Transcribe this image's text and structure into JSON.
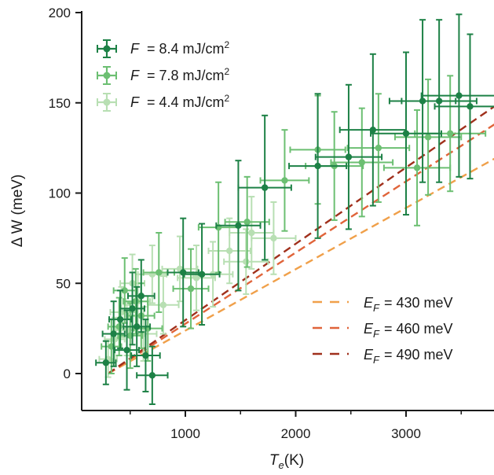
{
  "chart_data": {
    "type": "scatter",
    "xlabel": "T",
    "xlabel_sub": "e",
    "xlabel_unit": "(K)",
    "ylabel": "Δ W",
    "ylabel_unit": "(meV)",
    "xlim": [
      100,
      3800
    ],
    "ylim": [
      -20,
      200
    ],
    "xticks": [
      1000,
      2000,
      3000
    ],
    "yticks": [
      0,
      50,
      100,
      150,
      200
    ],
    "grid": false,
    "legend_scatter_position": "top-left",
    "legend_lines_position": "bottom-right",
    "series": [
      {
        "name_var": "F",
        "name_eq": "= 8.4",
        "name_unit": "mJ/cm",
        "name_sup": "2",
        "color": "#1d8146",
        "points": [
          {
            "x": 280,
            "y": 6,
            "xerr": 90,
            "yerr": 12
          },
          {
            "x": 350,
            "y": 22,
            "xerr": 100,
            "yerr": 18
          },
          {
            "x": 410,
            "y": 30,
            "xerr": 100,
            "yerr": 16
          },
          {
            "x": 470,
            "y": 13,
            "xerr": 110,
            "yerr": 22
          },
          {
            "x": 520,
            "y": 36,
            "xerr": 110,
            "yerr": 20
          },
          {
            "x": 560,
            "y": 26,
            "xerr": 120,
            "yerr": 22
          },
          {
            "x": 600,
            "y": 43,
            "xerr": 120,
            "yerr": 20
          },
          {
            "x": 640,
            "y": 10,
            "xerr": 130,
            "yerr": 20
          },
          {
            "x": 700,
            "y": -1,
            "xerr": 140,
            "yerr": 16
          },
          {
            "x": 980,
            "y": 56,
            "xerr": 140,
            "yerr": 30
          },
          {
            "x": 1150,
            "y": 55,
            "xerr": 160,
            "yerr": 28
          },
          {
            "x": 1480,
            "y": 82,
            "xerr": 200,
            "yerr": 36
          },
          {
            "x": 1720,
            "y": 103,
            "xerr": 240,
            "yerr": 40
          },
          {
            "x": 2200,
            "y": 115,
            "xerr": 260,
            "yerr": 40
          },
          {
            "x": 2480,
            "y": 120,
            "xerr": 300,
            "yerr": 40
          },
          {
            "x": 2700,
            "y": 135,
            "xerr": 300,
            "yerr": 42
          },
          {
            "x": 3000,
            "y": 133,
            "xerr": 320,
            "yerr": 45
          },
          {
            "x": 3150,
            "y": 151,
            "xerr": 300,
            "yerr": 45
          },
          {
            "x": 3300,
            "y": 151,
            "xerr": 340,
            "yerr": 45
          },
          {
            "x": 3480,
            "y": 154,
            "xerr": 340,
            "yerr": 45
          },
          {
            "x": 3580,
            "y": 148,
            "xerr": 320,
            "yerr": 40
          }
        ]
      },
      {
        "name_var": "F",
        "name_eq": "= 7.8",
        "name_unit": "mJ/cm",
        "name_sup": "2",
        "color": "#6cbf72",
        "points": [
          {
            "x": 330,
            "y": 15,
            "xerr": 90,
            "yerr": 15
          },
          {
            "x": 400,
            "y": 26,
            "xerr": 100,
            "yerr": 16
          },
          {
            "x": 450,
            "y": 46,
            "xerr": 100,
            "yerr": 18
          },
          {
            "x": 500,
            "y": 21,
            "xerr": 110,
            "yerr": 18
          },
          {
            "x": 550,
            "y": 40,
            "xerr": 110,
            "yerr": 18
          },
          {
            "x": 600,
            "y": 32,
            "xerr": 120,
            "yerr": 18
          },
          {
            "x": 660,
            "y": 25,
            "xerr": 130,
            "yerr": 18
          },
          {
            "x": 760,
            "y": 56,
            "xerr": 140,
            "yerr": 22
          },
          {
            "x": 1050,
            "y": 47,
            "xerr": 160,
            "yerr": 22
          },
          {
            "x": 1300,
            "y": 81,
            "xerr": 180,
            "yerr": 25
          },
          {
            "x": 1560,
            "y": 84,
            "xerr": 200,
            "yerr": 25
          },
          {
            "x": 1900,
            "y": 107,
            "xerr": 220,
            "yerr": 28
          },
          {
            "x": 2200,
            "y": 124,
            "xerr": 250,
            "yerr": 30
          },
          {
            "x": 2350,
            "y": 115,
            "xerr": 260,
            "yerr": 30
          },
          {
            "x": 2600,
            "y": 117,
            "xerr": 280,
            "yerr": 30
          },
          {
            "x": 2750,
            "y": 125,
            "xerr": 280,
            "yerr": 30
          },
          {
            "x": 3100,
            "y": 114,
            "xerr": 300,
            "yerr": 32
          },
          {
            "x": 3200,
            "y": 131,
            "xerr": 300,
            "yerr": 32
          },
          {
            "x": 3400,
            "y": 133,
            "xerr": 320,
            "yerr": 32
          }
        ]
      },
      {
        "name_var": "F",
        "name_eq": "= 4.4",
        "name_unit": "mJ/cm",
        "name_sup": "2",
        "color": "#b8dfb3",
        "points": [
          {
            "x": 300,
            "y": 8,
            "xerr": 80,
            "yerr": 10
          },
          {
            "x": 360,
            "y": 19,
            "xerr": 90,
            "yerr": 12
          },
          {
            "x": 420,
            "y": 34,
            "xerr": 100,
            "yerr": 14
          },
          {
            "x": 470,
            "y": 24,
            "xerr": 100,
            "yerr": 14
          },
          {
            "x": 520,
            "y": 50,
            "xerr": 110,
            "yerr": 16
          },
          {
            "x": 570,
            "y": 40,
            "xerr": 110,
            "yerr": 15
          },
          {
            "x": 620,
            "y": 22,
            "xerr": 120,
            "yerr": 15
          },
          {
            "x": 700,
            "y": 55,
            "xerr": 130,
            "yerr": 16
          },
          {
            "x": 800,
            "y": 38,
            "xerr": 140,
            "yerr": 16
          },
          {
            "x": 950,
            "y": 58,
            "xerr": 160,
            "yerr": 18
          },
          {
            "x": 1100,
            "y": 53,
            "xerr": 170,
            "yerr": 18
          },
          {
            "x": 1250,
            "y": 55,
            "xerr": 180,
            "yerr": 18
          },
          {
            "x": 1400,
            "y": 68,
            "xerr": 190,
            "yerr": 18
          },
          {
            "x": 1550,
            "y": 62,
            "xerr": 200,
            "yerr": 18
          },
          {
            "x": 1600,
            "y": 78,
            "xerr": 200,
            "yerr": 20
          },
          {
            "x": 1800,
            "y": 75,
            "xerr": 200,
            "yerr": 20
          }
        ]
      }
    ],
    "lines": [
      {
        "label_var": "E",
        "label_sub": "F",
        "label_eq": "= 430 meV",
        "color": "#f0a04a",
        "x": [
          300,
          3800
        ],
        "y": [
          0,
          119
        ]
      },
      {
        "label_var": "E",
        "label_sub": "F",
        "label_eq": "= 460 meV",
        "color": "#e0643a",
        "x": [
          300,
          3800
        ],
        "y": [
          0,
          138
        ]
      },
      {
        "label_var": "E",
        "label_sub": "F",
        "label_eq": "= 490 meV",
        "color": "#a0301c",
        "x": [
          300,
          3800
        ],
        "y": [
          0,
          148
        ]
      }
    ]
  }
}
